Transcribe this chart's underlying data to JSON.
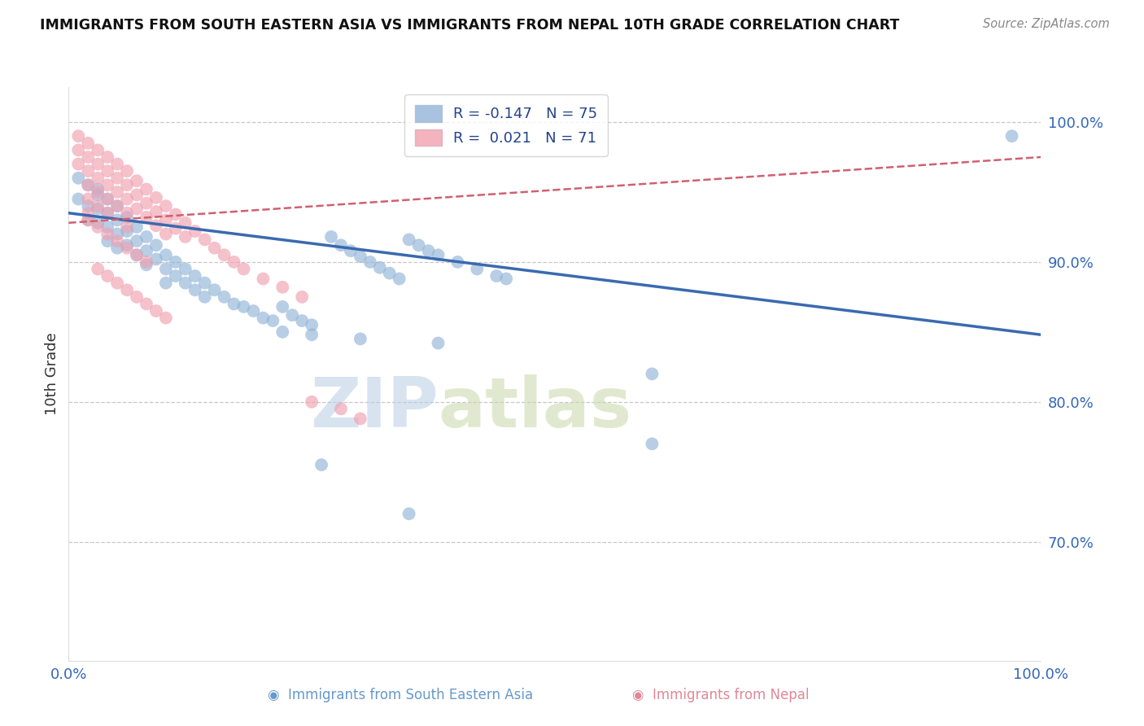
{
  "title": "IMMIGRANTS FROM SOUTH EASTERN ASIA VS IMMIGRANTS FROM NEPAL 10TH GRADE CORRELATION CHART",
  "source": "Source: ZipAtlas.com",
  "ylabel": "10th Grade",
  "ytick_labels": [
    "70.0%",
    "80.0%",
    "90.0%",
    "100.0%"
  ],
  "ytick_values": [
    0.7,
    0.8,
    0.9,
    1.0
  ],
  "xlim": [
    0.0,
    1.0
  ],
  "ylim": [
    0.615,
    1.025
  ],
  "legend_R_blue": "-0.147",
  "legend_N_blue": "75",
  "legend_R_pink": "0.021",
  "legend_N_pink": "71",
  "blue_color": "#92B4D8",
  "pink_color": "#F0A0B0",
  "trendline_blue_color": "#3A6AB0",
  "trendline_pink_color": "#D06070",
  "watermark_left": "ZIP",
  "watermark_right": "atlas",
  "blue_trend_start": 0.935,
  "blue_trend_end": 0.848,
  "pink_trend_start": 0.928,
  "pink_trend_end": 0.975,
  "blue_x": [
    0.01,
    0.01,
    0.02,
    0.02,
    0.02,
    0.03,
    0.03,
    0.03,
    0.03,
    0.04,
    0.04,
    0.04,
    0.04,
    0.05,
    0.05,
    0.05,
    0.05,
    0.06,
    0.06,
    0.06,
    0.07,
    0.07,
    0.07,
    0.08,
    0.08,
    0.08,
    0.09,
    0.09,
    0.1,
    0.1,
    0.1,
    0.11,
    0.11,
    0.12,
    0.12,
    0.13,
    0.13,
    0.14,
    0.14,
    0.15,
    0.16,
    0.17,
    0.18,
    0.19,
    0.2,
    0.21,
    0.22,
    0.23,
    0.24,
    0.25,
    0.27,
    0.28,
    0.29,
    0.3,
    0.31,
    0.32,
    0.33,
    0.34,
    0.35,
    0.36,
    0.37,
    0.38,
    0.4,
    0.42,
    0.44,
    0.45,
    0.22,
    0.25,
    0.3,
    0.38,
    0.26,
    0.35,
    0.6,
    0.6,
    0.97
  ],
  "blue_y": [
    0.96,
    0.945,
    0.955,
    0.94,
    0.93,
    0.952,
    0.948,
    0.938,
    0.928,
    0.945,
    0.935,
    0.925,
    0.915,
    0.94,
    0.93,
    0.92,
    0.91,
    0.932,
    0.922,
    0.912,
    0.925,
    0.915,
    0.905,
    0.918,
    0.908,
    0.898,
    0.912,
    0.902,
    0.905,
    0.895,
    0.885,
    0.9,
    0.89,
    0.895,
    0.885,
    0.89,
    0.88,
    0.885,
    0.875,
    0.88,
    0.875,
    0.87,
    0.868,
    0.865,
    0.86,
    0.858,
    0.868,
    0.862,
    0.858,
    0.855,
    0.918,
    0.912,
    0.908,
    0.904,
    0.9,
    0.896,
    0.892,
    0.888,
    0.916,
    0.912,
    0.908,
    0.905,
    0.9,
    0.895,
    0.89,
    0.888,
    0.85,
    0.848,
    0.845,
    0.842,
    0.755,
    0.72,
    0.82,
    0.77,
    0.99
  ],
  "pink_x": [
    0.01,
    0.01,
    0.01,
    0.02,
    0.02,
    0.02,
    0.02,
    0.02,
    0.02,
    0.03,
    0.03,
    0.03,
    0.03,
    0.03,
    0.04,
    0.04,
    0.04,
    0.04,
    0.04,
    0.05,
    0.05,
    0.05,
    0.05,
    0.06,
    0.06,
    0.06,
    0.06,
    0.06,
    0.07,
    0.07,
    0.07,
    0.08,
    0.08,
    0.08,
    0.09,
    0.09,
    0.09,
    0.1,
    0.1,
    0.1,
    0.11,
    0.11,
    0.12,
    0.12,
    0.13,
    0.14,
    0.15,
    0.16,
    0.17,
    0.18,
    0.2,
    0.22,
    0.24,
    0.04,
    0.05,
    0.03,
    0.06,
    0.07,
    0.08,
    0.02,
    0.03,
    0.04,
    0.05,
    0.06,
    0.07,
    0.08,
    0.09,
    0.1,
    0.25,
    0.28,
    0.3
  ],
  "pink_y": [
    0.99,
    0.98,
    0.97,
    0.985,
    0.975,
    0.965,
    0.955,
    0.945,
    0.935,
    0.98,
    0.97,
    0.96,
    0.95,
    0.94,
    0.975,
    0.965,
    0.955,
    0.945,
    0.935,
    0.97,
    0.96,
    0.95,
    0.94,
    0.965,
    0.955,
    0.945,
    0.935,
    0.925,
    0.958,
    0.948,
    0.938,
    0.952,
    0.942,
    0.932,
    0.946,
    0.936,
    0.926,
    0.94,
    0.93,
    0.92,
    0.934,
    0.924,
    0.928,
    0.918,
    0.922,
    0.916,
    0.91,
    0.905,
    0.9,
    0.895,
    0.888,
    0.882,
    0.875,
    0.92,
    0.915,
    0.925,
    0.91,
    0.905,
    0.9,
    0.93,
    0.895,
    0.89,
    0.885,
    0.88,
    0.875,
    0.87,
    0.865,
    0.86,
    0.8,
    0.795,
    0.788
  ]
}
